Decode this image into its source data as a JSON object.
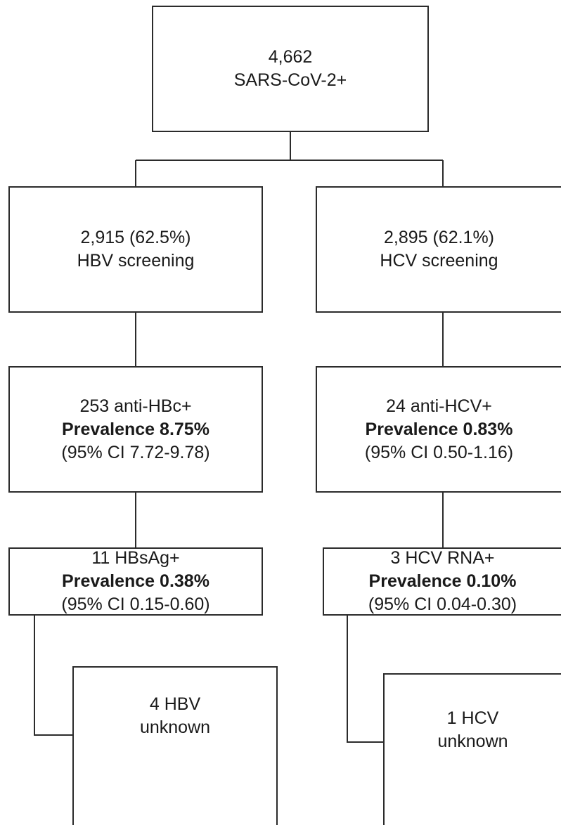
{
  "root": {
    "count": "4,662",
    "label": "SARS-CoV-2+"
  },
  "hbv": {
    "screening": {
      "count": "2,915 (62.5%)",
      "label": "HBV screening"
    },
    "anti": {
      "label": "253 anti-HBc+",
      "prevalence": "Prevalence 8.75%",
      "ci": "(95% CI 7.72-9.78)"
    },
    "antigen": {
      "label": "11 HBsAg+",
      "prevalence": "Prevalence 0.38%",
      "ci": "(95% CI 0.15-0.60)"
    },
    "unknown": {
      "line1": "4 HBV",
      "line2": "unknown"
    }
  },
  "hcv": {
    "screening": {
      "count": "2,895 (62.1%)",
      "label": "HCV screening"
    },
    "anti": {
      "label": "24 anti-HCV+",
      "prevalence": "Prevalence 0.83%",
      "ci": "(95% CI 0.50-1.16)"
    },
    "rna": {
      "label": "3 HCV RNA+",
      "prevalence": "Prevalence 0.10%",
      "ci": "(95% CI 0.04-0.30)"
    },
    "unknown": {
      "line1": "1 HCV",
      "line2": "unknown"
    }
  }
}
